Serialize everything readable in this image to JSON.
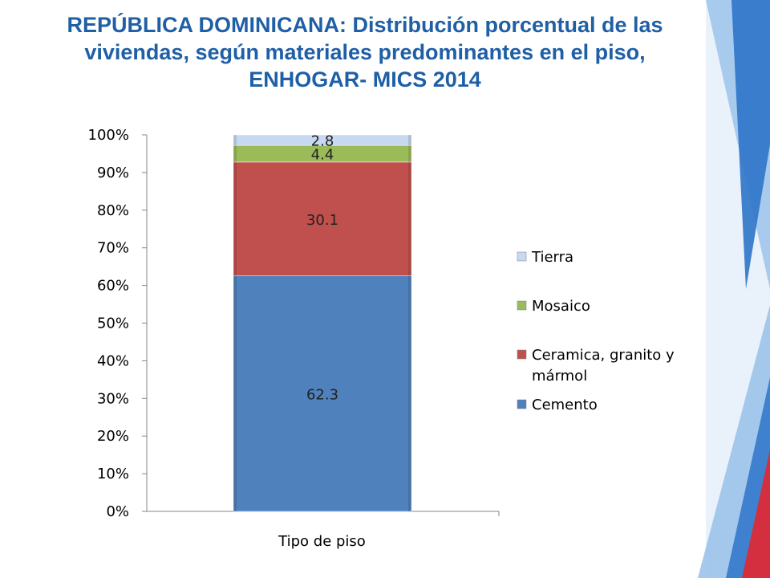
{
  "slide": {
    "title": "REPÚBLICA DOMINICANA:  Distribución porcentual de las viviendas, según materiales predominantes en el piso, ENHOGAR- MICS 2014"
  },
  "colors": {
    "title": "#1f5fa6",
    "Cemento": "#4f81bd",
    "Ceramica": "#c0504d",
    "Mosaico": "#9bbb59",
    "Tierra": "#c6d9f1",
    "decor_blue_dark": "#2e74c9",
    "decor_blue_light": "#9cc3e9",
    "decor_red": "#d32f3f"
  },
  "chart_data": {
    "type": "bar",
    "stacked": "percent",
    "categories": [
      "Tipo de piso"
    ],
    "xlabel": "Tipo de piso",
    "ylabel": "",
    "ylim": [
      0,
      100
    ],
    "y_ticks": [
      "0%",
      "10%",
      "20%",
      "30%",
      "40%",
      "50%",
      "60%",
      "70%",
      "80%",
      "90%",
      "100%"
    ],
    "grid": false,
    "legend_position": "right",
    "series": [
      {
        "name": "Cemento",
        "values": [
          62.3
        ],
        "label": "62.3",
        "color": "#4f81bd"
      },
      {
        "name": "Ceramica, granito y mármol",
        "values": [
          30.1
        ],
        "label": "30.1",
        "color": "#c0504d"
      },
      {
        "name": "Mosaico",
        "values": [
          4.4
        ],
        "label": "4.4",
        "color": "#9bbb59"
      },
      {
        "name": "Tierra",
        "values": [
          2.8
        ],
        "label": "2.8",
        "color": "#c6d9f1"
      }
    ],
    "legend_order": [
      "Tierra",
      "Mosaico",
      "Ceramica, granito y mármol",
      "Cemento"
    ],
    "legend_lines": {
      "Tierra": [
        "Tierra"
      ],
      "Mosaico": [
        "Mosaico"
      ],
      "Ceramica, granito y mármol": [
        "Ceramica, granito y",
        "mármol"
      ],
      "Cemento": [
        "Cemento"
      ]
    }
  }
}
